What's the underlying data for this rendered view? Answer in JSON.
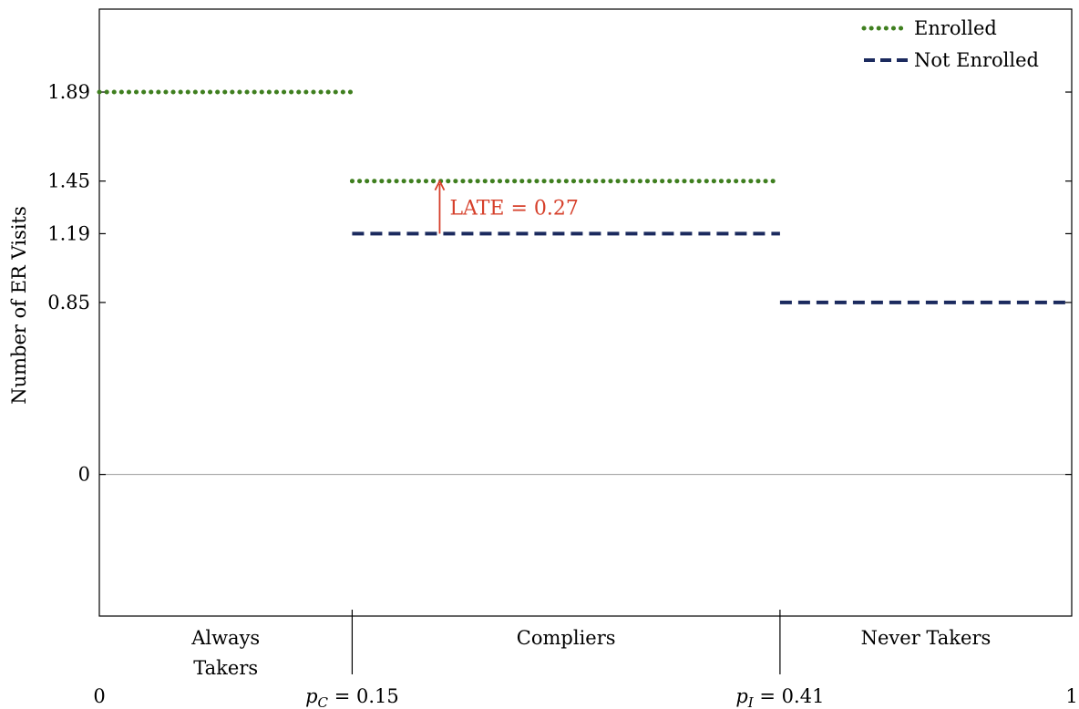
{
  "chart_data": {
    "type": "line",
    "ylabel": "Number of ER Visits",
    "xlabel": "",
    "xlim": [
      0,
      1
    ],
    "ylim": [
      -0.7,
      2.3
    ],
    "y_ticks": [
      {
        "value": 0,
        "label": "0"
      },
      {
        "value": 0.85,
        "label": "0.85"
      },
      {
        "value": 1.19,
        "label": "1.19"
      },
      {
        "value": 1.45,
        "label": "1.45"
      },
      {
        "value": 1.89,
        "label": "1.89"
      }
    ],
    "x_ticks": [
      {
        "value": 0,
        "label": "0"
      },
      {
        "value": 0.26,
        "label_prefix": "p",
        "label_sub": "C",
        "label_suffix": " = 0.15"
      },
      {
        "value": 0.7,
        "label_prefix": "p",
        "label_sub": "I",
        "label_suffix": " = 0.41"
      },
      {
        "value": 1,
        "label": "1"
      }
    ],
    "groups": [
      {
        "lines": [
          "Always",
          "Takers"
        ],
        "x_start": 0,
        "x_end": 0.26
      },
      {
        "lines": [
          "Compliers"
        ],
        "x_start": 0.26,
        "x_end": 0.7
      },
      {
        "lines": [
          "Never Takers"
        ],
        "x_start": 0.7,
        "x_end": 1
      }
    ],
    "series": [
      {
        "name": "Enrolled",
        "style": "dotted",
        "color": "#3f7f1f",
        "segments": [
          {
            "x_start": 0,
            "x_end": 0.26,
            "y": 1.89
          },
          {
            "x_start": 0.26,
            "x_end": 0.7,
            "y": 1.45
          }
        ]
      },
      {
        "name": "Not Enrolled",
        "style": "dashed",
        "color": "#1b2a5e",
        "segments": [
          {
            "x_start": 0.26,
            "x_end": 0.7,
            "y": 1.19
          },
          {
            "x_start": 0.7,
            "x_end": 1,
            "y": 0.85
          }
        ]
      }
    ],
    "annotation": {
      "text": "LATE = 0.27",
      "color": "#d6402b",
      "x": 0.35,
      "y_from": 1.19,
      "y_to": 1.45
    },
    "legend": {
      "placement": "top-right"
    },
    "grid": false
  }
}
